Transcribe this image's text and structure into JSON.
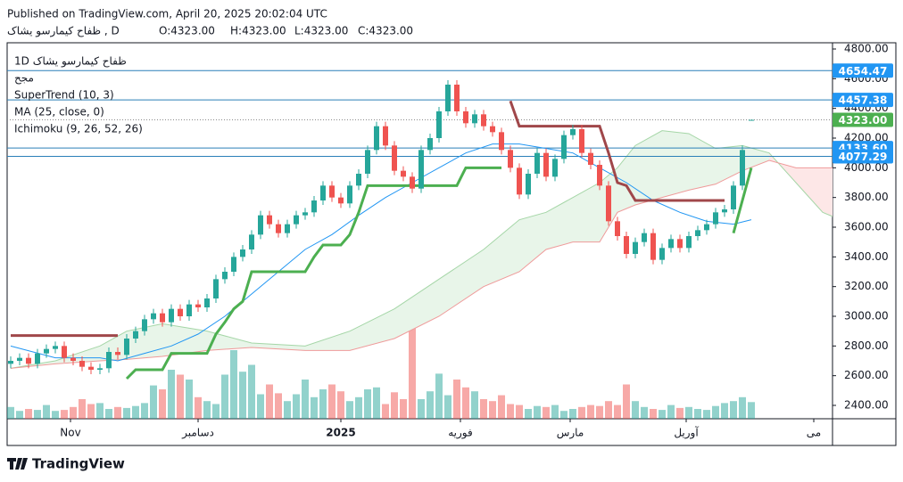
{
  "header": {
    "published": "Published on TradingView.com, April 20, 2025 20:02:04 UTC",
    "symbol": "ظفاح کیمارسو یشاک , D",
    "ohlc": [
      "O:4323.00",
      "H:4323.00",
      "L:4323.00",
      "C:4323.00"
    ]
  },
  "legend": [
    "1D ظفاح کیمارسو یشاک",
    "مجح",
    "SuperTrend (10, 3)",
    "MA (25, close, 0)",
    "Ichimoku (9, 26, 52, 26)"
  ],
  "footer": "TradingView",
  "chart_data": {
    "type": "candlestick",
    "xlim": [
      -0.4,
      92.1
    ],
    "ylim": [
      2310,
      4842
    ],
    "yticks": [
      {
        "value": 2400,
        "label": "2400.00"
      },
      {
        "value": 2600,
        "label": "2600.00"
      },
      {
        "value": 2800,
        "label": "2800.00"
      },
      {
        "value": 3000,
        "label": "3000.00"
      },
      {
        "value": 3200,
        "label": "3200.00"
      },
      {
        "value": 3400,
        "label": "3400.00"
      },
      {
        "value": 3600,
        "label": "3600.00"
      },
      {
        "value": 3800,
        "label": "3800.00"
      },
      {
        "value": 4000,
        "label": "4000.00"
      },
      {
        "value": 4200,
        "label": "4200.00"
      },
      {
        "value": 4400,
        "label": "4400.00"
      },
      {
        "value": 4600,
        "label": "4600.00"
      },
      {
        "value": 4800,
        "label": "4800.00"
      }
    ],
    "xticks": [
      {
        "value": 6.7,
        "label": "Nov"
      },
      {
        "value": 21,
        "label": "دسامبر"
      },
      {
        "value": 37,
        "label": "2025"
      },
      {
        "value": 50.4,
        "label": "فوریه"
      },
      {
        "value": 62.7,
        "label": "مارس"
      },
      {
        "value": 75.7,
        "label": "آوریل"
      },
      {
        "value": 90,
        "label": "می"
      }
    ],
    "up_color": "#26a69a",
    "down_color": "#ef5350",
    "open": [
      2680,
      2700,
      2720,
      2680,
      2750,
      2780,
      2800,
      2720,
      2700,
      2660,
      2640,
      2650,
      2760,
      2740,
      2850,
      2900,
      2980,
      3020,
      2960,
      3050,
      3000,
      3080,
      3060,
      3120,
      3250,
      3300,
      3400,
      3450,
      3550,
      3680,
      3620,
      3560,
      3620,
      3680,
      3700,
      3780,
      3880,
      3800,
      3760,
      3880,
      3960,
      4120,
      4280,
      4150,
      3980,
      3940,
      3860,
      4120,
      4200,
      4380,
      4560,
      4380,
      4300,
      4360,
      4280,
      4240,
      4120,
      4000,
      3820,
      3960,
      4100,
      3940,
      4060,
      4220,
      4260,
      4100,
      4020,
      3880,
      3640,
      3540,
      3420,
      3500,
      3560,
      3380,
      3460,
      3520,
      3460,
      3540,
      3580,
      3620,
      3700,
      3720,
      3880,
      4323
    ],
    "high": [
      2730,
      2750,
      2750,
      2780,
      2810,
      2830,
      2830,
      2750,
      2730,
      2690,
      2680,
      2790,
      2790,
      2880,
      2930,
      3010,
      3050,
      3050,
      3080,
      3080,
      3110,
      3110,
      3150,
      3280,
      3330,
      3430,
      3480,
      3580,
      3710,
      3710,
      3650,
      3650,
      3710,
      3730,
      3810,
      3910,
      3910,
      3830,
      3910,
      3990,
      4150,
      4310,
      4310,
      4180,
      4010,
      3970,
      4150,
      4230,
      4410,
      4590,
      4590,
      4410,
      4390,
      4390,
      4310,
      4270,
      4150,
      4030,
      3990,
      4130,
      4130,
      4090,
      4250,
      4290,
      4290,
      4130,
      4050,
      3910,
      3670,
      3570,
      3530,
      3590,
      3590,
      3490,
      3550,
      3550,
      3570,
      3610,
      3650,
      3730,
      3750,
      3910,
      4150,
      4323
    ],
    "low": [
      2650,
      2670,
      2650,
      2650,
      2720,
      2750,
      2690,
      2670,
      2630,
      2610,
      2610,
      2620,
      2710,
      2710,
      2820,
      2870,
      2950,
      2930,
      2930,
      2970,
      2970,
      3030,
      3030,
      3090,
      3220,
      3270,
      3370,
      3420,
      3520,
      3590,
      3530,
      3530,
      3590,
      3650,
      3670,
      3750,
      3770,
      3730,
      3730,
      3850,
      3930,
      4090,
      4120,
      3950,
      3910,
      3830,
      3830,
      4090,
      4170,
      4350,
      4350,
      4270,
      4270,
      4250,
      4210,
      4090,
      3970,
      3790,
      3790,
      3930,
      3910,
      3910,
      4030,
      4190,
      4070,
      3990,
      3850,
      3610,
      3510,
      3390,
      3390,
      3470,
      3350,
      3350,
      3430,
      3430,
      3430,
      3510,
      3550,
      3590,
      3670,
      3690,
      3850,
      4323
    ],
    "close": [
      2700,
      2720,
      2680,
      2750,
      2780,
      2800,
      2720,
      2700,
      2660,
      2640,
      2650,
      2760,
      2740,
      2850,
      2900,
      2980,
      3020,
      2960,
      3050,
      3000,
      3080,
      3060,
      3120,
      3250,
      3300,
      3400,
      3450,
      3550,
      3680,
      3620,
      3560,
      3620,
      3680,
      3700,
      3780,
      3880,
      3800,
      3760,
      3880,
      3960,
      4120,
      4280,
      4150,
      3980,
      3940,
      3860,
      4120,
      4200,
      4380,
      4560,
      4380,
      4300,
      4360,
      4280,
      4240,
      4120,
      4000,
      3820,
      3960,
      4100,
      3940,
      4060,
      4220,
      4260,
      4100,
      4020,
      3880,
      3640,
      3540,
      3420,
      3500,
      3560,
      3380,
      3460,
      3520,
      3460,
      3540,
      3580,
      3620,
      3700,
      3720,
      3880,
      4120,
      4323
    ],
    "volume": [
      12,
      8,
      10,
      9,
      14,
      8,
      9,
      12,
      20,
      15,
      16,
      10,
      12,
      11,
      13,
      16,
      34,
      30,
      50,
      45,
      40,
      22,
      18,
      15,
      45,
      70,
      48,
      55,
      25,
      35,
      26,
      18,
      25,
      40,
      22,
      30,
      35,
      28,
      18,
      22,
      30,
      32,
      15,
      27,
      20,
      95,
      20,
      28,
      46,
      24,
      40,
      32,
      28,
      20,
      18,
      24,
      15,
      14,
      10,
      13,
      12,
      14,
      8,
      10,
      12,
      14,
      13,
      18,
      14,
      35,
      18,
      12,
      10,
      9,
      14,
      11,
      12,
      10,
      9,
      13,
      16,
      18,
      22,
      17
    ],
    "vlim": [
      0,
      100
    ],
    "supertrend": [
      {
        "color": "#4caf50",
        "values": [
          null,
          null,
          null,
          null,
          null,
          null,
          null,
          null,
          null,
          null,
          null,
          null,
          null,
          2580,
          2640,
          2640,
          2640,
          2640,
          2750,
          2750,
          2750,
          2750,
          2750,
          2880,
          2960,
          3050,
          3100,
          3300,
          3300,
          3300,
          3300,
          3300,
          3300,
          3300,
          3400,
          3480,
          3480,
          3480,
          3550,
          3700,
          3880,
          3880,
          3880,
          3880,
          3880,
          3880,
          3880,
          3880,
          3880,
          3880,
          3880,
          4000,
          4000,
          4000,
          4000,
          4000,
          null,
          null,
          null,
          null,
          null,
          null,
          null,
          null,
          null,
          null,
          null,
          null,
          null,
          null,
          null,
          null,
          null,
          null,
          null,
          null,
          null,
          null,
          null,
          null,
          null,
          3560,
          3780,
          4000
        ]
      },
      {
        "color": "#a0474a",
        "values": [
          2870,
          2870,
          2870,
          2870,
          2870,
          2870,
          2870,
          2870,
          2870,
          2870,
          2870,
          2870,
          2870,
          null,
          null,
          null,
          null,
          null,
          null,
          null,
          null,
          null,
          null,
          null,
          null,
          null,
          null,
          null,
          null,
          null,
          null,
          null,
          null,
          null,
          null,
          null,
          null,
          null,
          null,
          null,
          null,
          null,
          null,
          null,
          null,
          null,
          null,
          null,
          null,
          null,
          null,
          null,
          null,
          null,
          null,
          null,
          4450,
          4280,
          4280,
          4280,
          4280,
          4280,
          4280,
          4280,
          4280,
          4280,
          4280,
          4100,
          3900,
          3880,
          3780,
          3780,
          3780,
          3780,
          3780,
          3780,
          3780,
          3780,
          3780,
          3780,
          3780,
          null,
          null,
          null
        ]
      }
    ],
    "ma": {
      "color": "#2196f3",
      "x": [
        0,
        5,
        10,
        12,
        15,
        18,
        21,
        24,
        27,
        30,
        33,
        36,
        39,
        42,
        45,
        48,
        51,
        54,
        57,
        60,
        63,
        66,
        69,
        72,
        75,
        78,
        81,
        83
      ],
      "values": [
        2800,
        2720,
        2720,
        2700,
        2750,
        2800,
        2880,
        3000,
        3150,
        3300,
        3450,
        3550,
        3680,
        3800,
        3900,
        4000,
        4100,
        4160,
        4160,
        4130,
        4100,
        4000,
        3900,
        3780,
        3700,
        3640,
        3620,
        3650
      ]
    },
    "ichimoku": {
      "x": [
        0,
        5,
        10,
        13,
        17,
        22,
        27,
        33,
        38,
        43,
        48,
        53,
        57,
        60,
        63,
        66,
        68,
        70,
        73,
        76,
        79,
        82,
        85,
        88,
        91,
        93
      ],
      "span_a": {
        "color": "#a5d6a7",
        "values": [
          2650,
          2700,
          2800,
          2900,
          2950,
          2900,
          2820,
          2800,
          2900,
          3050,
          3250,
          3450,
          3650,
          3700,
          3800,
          3900,
          4000,
          4150,
          4250,
          4230,
          4130,
          4150,
          4100,
          3900,
          3700,
          3650
        ]
      },
      "span_b": {
        "color": "#ef9a9a",
        "values": [
          2650,
          2680,
          2700,
          2710,
          2730,
          2770,
          2790,
          2770,
          2770,
          2850,
          3000,
          3200,
          3300,
          3450,
          3500,
          3500,
          3700,
          3750,
          3800,
          3850,
          3890,
          3980,
          4050,
          4000,
          4000,
          4000
        ]
      },
      "up_fill": "#e8f5e9",
      "down_fill": "#fde7e7"
    },
    "levels": [
      {
        "value": 4654.47,
        "label": "4654.47",
        "color": "#2196f3"
      },
      {
        "value": 4457.38,
        "label": "4457.38",
        "color": "#2196f3"
      },
      {
        "value": 4323,
        "label": "4323.00",
        "color": "#4caf50"
      },
      {
        "value": 4133.6,
        "label": "4133.60",
        "color": "#2196f3"
      },
      {
        "value": 4077.29,
        "label": "4077.29",
        "color": "#2196f3"
      }
    ]
  }
}
